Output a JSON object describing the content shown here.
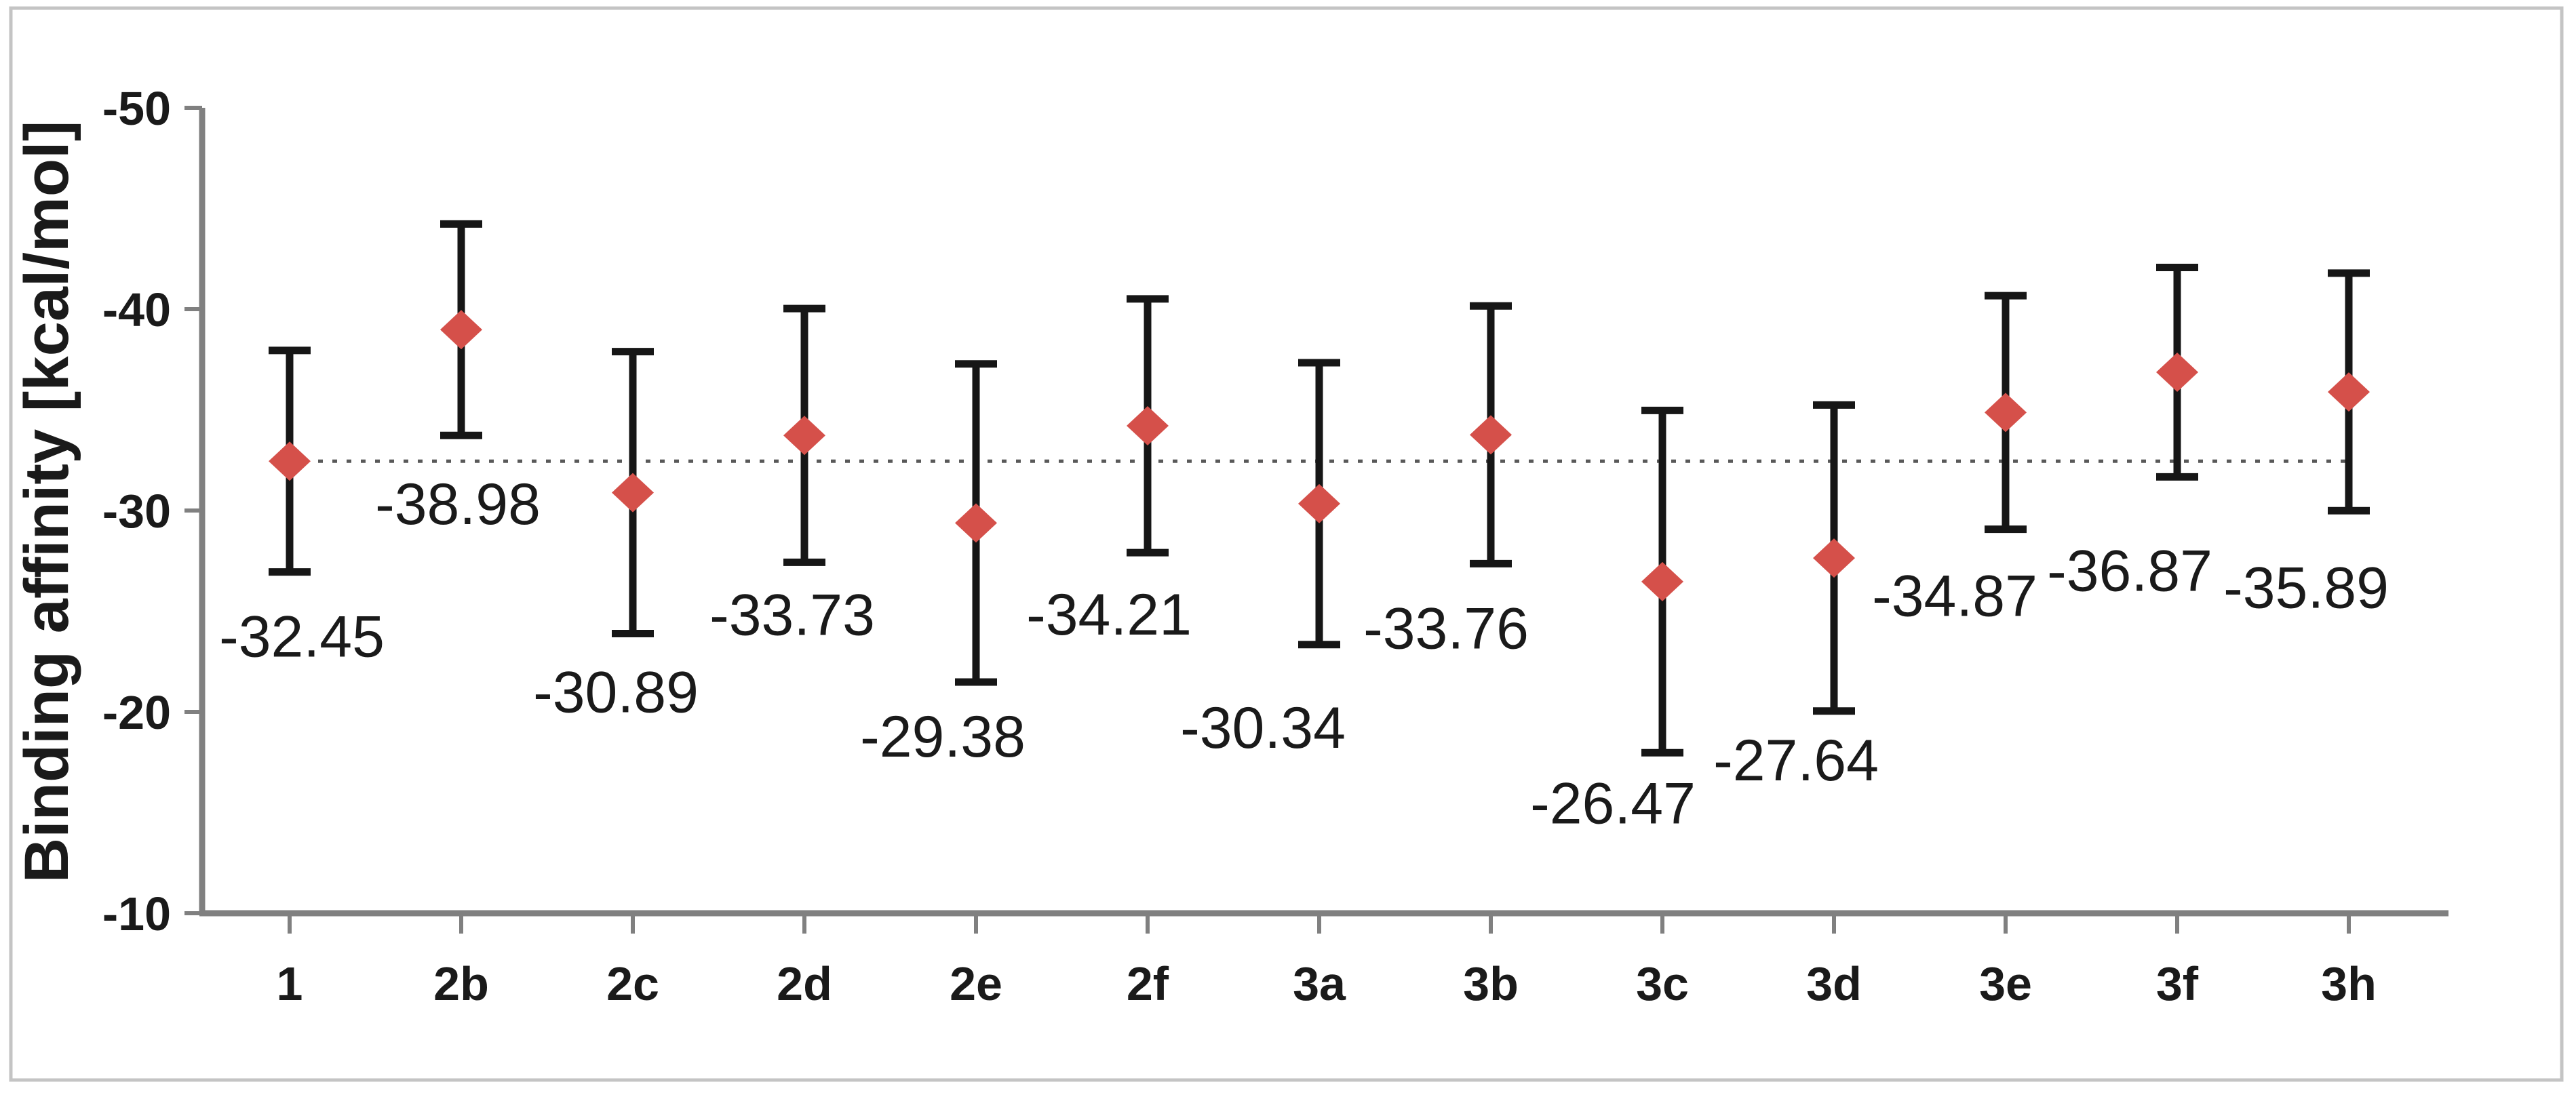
{
  "chart_data": {
    "type": "scatter",
    "title": "",
    "xlabel": "",
    "ylabel": "Binding affinity [kcal/mol]",
    "y_axis": {
      "min": -50,
      "max": -10,
      "inverted": true,
      "tick_values": [
        -50,
        -40,
        -30,
        -20,
        -10
      ],
      "tick_labels": [
        "-50",
        "-40",
        "-30",
        "-20",
        "-10"
      ]
    },
    "categories": [
      "1",
      "2b",
      "2c",
      "2d",
      "2e",
      "2f",
      "3a",
      "3b",
      "3c",
      "3d",
      "3e",
      "3f",
      "3h"
    ],
    "series": [
      {
        "name": "Binding affinity",
        "marker": "diamond",
        "points": [
          {
            "category": "1",
            "value": -32.45,
            "error": 5.5,
            "label": "-32.45",
            "label_offset": [
              18,
              94
            ]
          },
          {
            "category": "2b",
            "value": -38.98,
            "error": 5.25,
            "label": "-38.98",
            "label_offset": [
              -5,
              100
            ]
          },
          {
            "category": "2c",
            "value": -30.89,
            "error": 7.0,
            "label": "-30.89",
            "label_offset": [
              -25,
              85
            ]
          },
          {
            "category": "2d",
            "value": -33.73,
            "error": 6.3,
            "label": "-33.73",
            "label_offset": [
              -18,
              76
            ]
          },
          {
            "category": "2e",
            "value": -29.38,
            "error": 7.9,
            "label": "-29.38",
            "label_offset": [
              -49,
              79
            ]
          },
          {
            "category": "2f",
            "value": -34.21,
            "error": 6.3,
            "label": "-34.21",
            "label_offset": [
              -57,
              90
            ]
          },
          {
            "category": "3a",
            "value": -30.34,
            "error": 7.0,
            "label": "-30.34",
            "label_offset": [
              -83,
              121
            ]
          },
          {
            "category": "3b",
            "value": -33.76,
            "error": 6.4,
            "label": "-33.76",
            "label_offset": [
              -66,
              94
            ]
          },
          {
            "category": "3c",
            "value": -26.47,
            "error": 8.5,
            "label": "-26.47",
            "label_offset": [
              -73,
              73
            ]
          },
          {
            "category": "3d",
            "value": -27.64,
            "error": 7.6,
            "label": "-27.64",
            "label_offset": [
              -56,
              71
            ]
          },
          {
            "category": "3e",
            "value": -34.87,
            "error": 5.8,
            "label": "-34.87",
            "label_offset": [
              -75,
              97
            ]
          },
          {
            "category": "3f",
            "value": -36.87,
            "error": 5.2,
            "label": "-36.87",
            "label_offset": [
              -70,
              137
            ]
          },
          {
            "category": "3h",
            "value": -35.89,
            "error": 5.9,
            "label": "-35.89",
            "label_offset": [
              -63,
              112
            ]
          }
        ]
      }
    ],
    "reference_line": {
      "value": -32.45,
      "style": "dotted",
      "color": "#595959"
    },
    "legend": false,
    "grid": false,
    "colors": {
      "marker_fill": "#d5504a",
      "error_bar": "#161616",
      "axis_line": "#808080",
      "text": "#1a1a1a",
      "border": "#c4c4c4",
      "background": "#ffffff"
    }
  }
}
